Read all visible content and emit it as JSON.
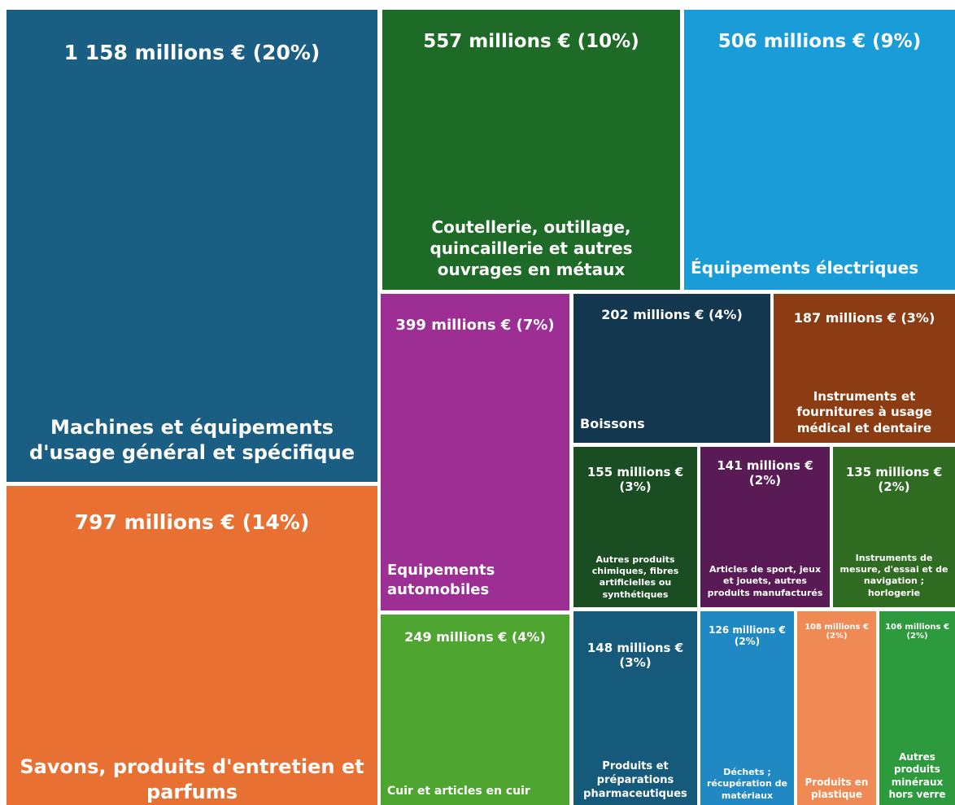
{
  "chart_data": {
    "type": "treemap",
    "categories": [
      "Machines et équipements d'usage général et spécifique",
      "Savons, produits d'entretien et parfums",
      "Coutellerie, outillage, quincaillerie et autres ouvrages en métaux",
      "Équipements électriques",
      "Equipements automobiles",
      "Boissons",
      "Instruments et fournitures à usage médical et dentaire",
      "Autres produits chimiques, fibres artificielles ou synthétiques",
      "Articles de sport, jeux et jouets, autres produits manufacturés",
      "Instruments de mesure, d'essai et de navigation ; horlogerie",
      "Cuir et articles en cuir",
      "Produits et préparations pharmaceutiques",
      "Déchets ; récupération de matériaux",
      "Produits en plastique",
      "Autres produits minéraux hors verre"
    ],
    "values": [
      1158,
      797,
      557,
      506,
      399,
      202,
      187,
      155,
      141,
      135,
      249,
      148,
      126,
      108,
      106
    ],
    "value_labels": [
      "1 158 millions € (20%)",
      "797 millions € (14%)",
      "557 millions € (10%)",
      "506 millions € (9%)",
      "399 millions € (7%)",
      "202 millions € (4%)",
      "187 millions € (3%)",
      "155 millions € (3%)",
      "141 millions € (2%)",
      "135 millions € (2%)",
      "249 millions € (4%)",
      "148 millions € (3%)",
      "126 millions € (2%)",
      "108 millions € (2%)",
      "106 millions € (2%)"
    ],
    "colors": [
      "#1a5e83",
      "#e87033",
      "#1e6b27",
      "#1a9cd8",
      "#9c2e94",
      "#12374f",
      "#8b3c12",
      "#1a4d22",
      "#5a1a55",
      "#2f6b21",
      "#4ea52f",
      "#155a7b",
      "#2088c3",
      "#ef8a55",
      "#2e9a3e"
    ]
  }
}
